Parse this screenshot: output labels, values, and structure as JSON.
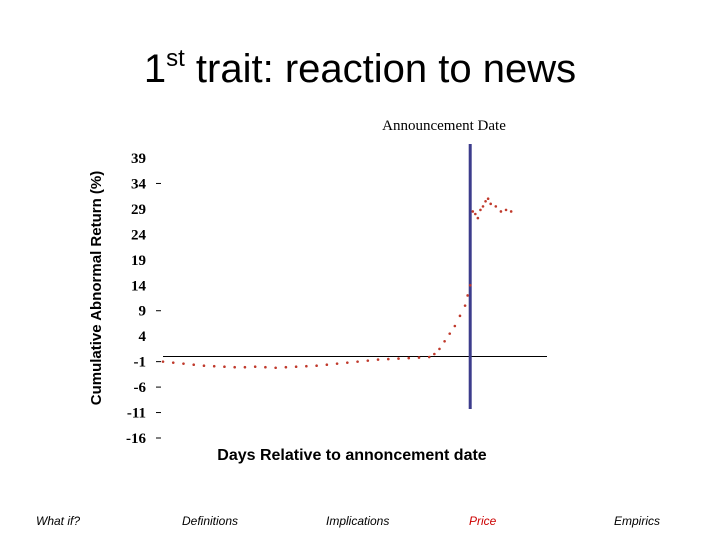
{
  "slide": {
    "title_main": "1",
    "title_sup": "st",
    "title_rest": " trait: reaction to news"
  },
  "chart_data": {
    "type": "scatter",
    "annotation": "Announcement Date",
    "xlabel": "Days Relative to annoncement date",
    "ylabel": "Cumulative Abnormal Return (%)",
    "y_ticks": [
      "39",
      "34",
      "29",
      "24",
      "19",
      "14",
      "9",
      "4",
      "-1",
      "-6",
      "-11",
      "-16"
    ],
    "y_tick_values": [
      39,
      34,
      29,
      24,
      19,
      14,
      9,
      4,
      -1,
      -6,
      -11,
      -16
    ],
    "ylim": [
      -16,
      39
    ],
    "xlim": [
      -120,
      30
    ],
    "x": [
      -120,
      -116,
      -112,
      -108,
      -104,
      -100,
      -96,
      -92,
      -88,
      -84,
      -80,
      -76,
      -72,
      -68,
      -64,
      -60,
      -56,
      -52,
      -48,
      -44,
      -40,
      -36,
      -32,
      -28,
      -24,
      -20,
      -16,
      -14,
      -12,
      -10,
      -8,
      -6,
      -4,
      -2,
      -1,
      0,
      1,
      2,
      3,
      4,
      5,
      6,
      7,
      8,
      10,
      12,
      14,
      16
    ],
    "values": [
      -1.0,
      -1.2,
      -1.4,
      -1.6,
      -1.8,
      -1.9,
      -2.0,
      -2.1,
      -2.1,
      -2.0,
      -2.1,
      -2.2,
      -2.1,
      -2.0,
      -1.9,
      -1.8,
      -1.6,
      -1.4,
      -1.2,
      -1.0,
      -0.8,
      -0.6,
      -0.5,
      -0.4,
      -0.3,
      -0.2,
      -0.1,
      0.5,
      1.5,
      3.0,
      4.5,
      6.0,
      8.0,
      10.0,
      12.0,
      14.0,
      28.5,
      28.0,
      27.2,
      28.8,
      29.5,
      30.5,
      31.0,
      30.0,
      29.5,
      28.5,
      28.8,
      28.5
    ],
    "announcement_x": 0,
    "reference_y": 0,
    "colors": {
      "points": "#c0392b",
      "announcement_line": "#3c3c8c",
      "reference_line": "#000000"
    }
  },
  "footer": {
    "nav_1": "What if?",
    "nav_2": "Definitions",
    "nav_3": "Implications",
    "nav_4": "Price",
    "nav_5": "Empirics",
    "nav_4_color": "#cc0000"
  }
}
